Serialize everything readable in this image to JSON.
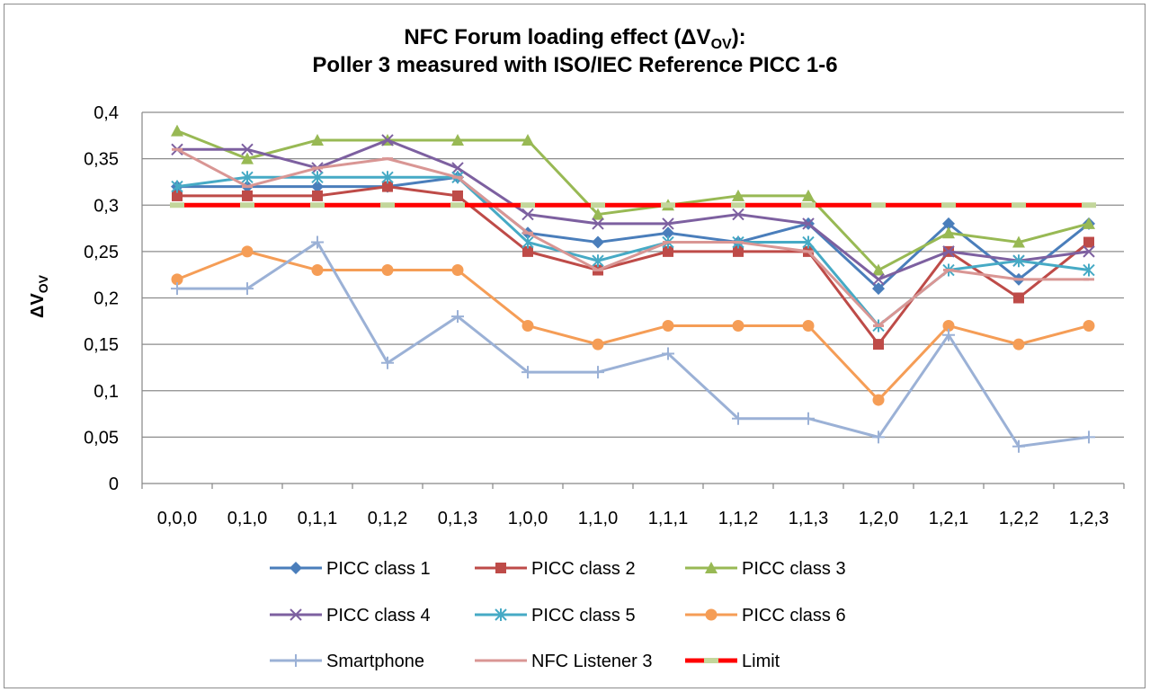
{
  "chart_data": {
    "type": "line",
    "title_line1": "NFC Forum loading effect (ΔV",
    "title_sub": "OV",
    "title_line1_end": "):",
    "title_line2": "Poller 3 measured with ISO/IEC Reference PICC 1-6",
    "ylabel": "ΔV",
    "ylabel_sub": "OV",
    "ylim": [
      0,
      0.4
    ],
    "yticks": [
      "0",
      "0,05",
      "0,1",
      "0,15",
      "0,2",
      "0,25",
      "0,3",
      "0,35",
      "0,4"
    ],
    "grid": true,
    "legend_position": "bottom",
    "categories": [
      "0,0,0",
      "0,1,0",
      "0,1,1",
      "0,1,2",
      "0,1,3",
      "1,0,0",
      "1,1,0",
      "1,1,1",
      "1,1,2",
      "1,1,3",
      "1,2,0",
      "1,2,1",
      "1,2,2",
      "1,2,3"
    ],
    "series": [
      {
        "name": "PICC class 1",
        "color": "#4a7ebb",
        "marker": "diamond",
        "values": [
          0.32,
          0.32,
          0.32,
          0.32,
          0.33,
          0.27,
          0.26,
          0.27,
          0.26,
          0.28,
          0.21,
          0.28,
          0.22,
          0.28
        ]
      },
      {
        "name": "PICC class 2",
        "color": "#be4b48",
        "marker": "square",
        "values": [
          0.31,
          0.31,
          0.31,
          0.32,
          0.31,
          0.25,
          0.23,
          0.25,
          0.25,
          0.25,
          0.15,
          0.25,
          0.2,
          0.26
        ]
      },
      {
        "name": "PICC class 3",
        "color": "#98b954",
        "marker": "triangle",
        "values": [
          0.38,
          0.35,
          0.37,
          0.37,
          0.37,
          0.37,
          0.29,
          0.3,
          0.31,
          0.31,
          0.23,
          0.27,
          0.26,
          0.28
        ]
      },
      {
        "name": "PICC class 4",
        "color": "#7d60a0",
        "marker": "x",
        "values": [
          0.36,
          0.36,
          0.34,
          0.37,
          0.34,
          0.29,
          0.28,
          0.28,
          0.29,
          0.28,
          0.22,
          0.25,
          0.24,
          0.25
        ]
      },
      {
        "name": "PICC class 5",
        "color": "#46aac5",
        "marker": "asterisk",
        "values": [
          0.32,
          0.33,
          0.33,
          0.33,
          0.33,
          0.26,
          0.24,
          0.26,
          0.26,
          0.26,
          0.17,
          0.23,
          0.24,
          0.23
        ]
      },
      {
        "name": "PICC class 6",
        "color": "#f59d56",
        "marker": "circle",
        "values": [
          0.22,
          0.25,
          0.23,
          0.23,
          0.23,
          0.17,
          0.15,
          0.17,
          0.17,
          0.17,
          0.09,
          0.17,
          0.15,
          0.17
        ]
      },
      {
        "name": "Smartphone",
        "color": "#9bb1d6",
        "marker": "plus",
        "values": [
          0.21,
          0.21,
          0.26,
          0.13,
          0.18,
          0.12,
          0.12,
          0.14,
          0.07,
          0.07,
          0.05,
          0.16,
          0.04,
          0.05
        ]
      },
      {
        "name": "NFC Listener 3",
        "color": "#d99694",
        "marker": "dash",
        "values": [
          0.36,
          0.32,
          0.34,
          0.35,
          0.33,
          0.27,
          0.23,
          0.26,
          0.26,
          0.25,
          0.17,
          0.23,
          0.22,
          0.22
        ]
      },
      {
        "name": "Limit",
        "color": "#ff0000",
        "marker": "bar",
        "marker_color": "#c3d69b",
        "values": [
          0.3,
          0.3,
          0.3,
          0.3,
          0.3,
          0.3,
          0.3,
          0.3,
          0.3,
          0.3,
          0.3,
          0.3,
          0.3,
          0.3
        ]
      }
    ]
  }
}
